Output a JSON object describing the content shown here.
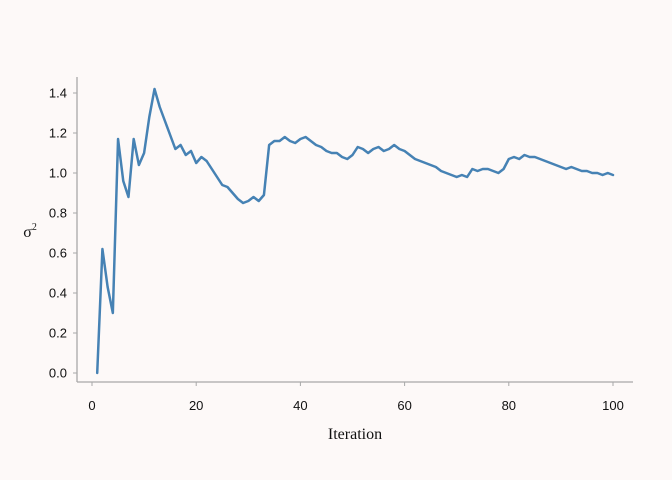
{
  "chart_data": {
    "type": "line",
    "title": "",
    "xlabel": "Iteration",
    "ylabel_base": "σ",
    "ylabel_sup": "2",
    "xlim": [
      -2,
      104
    ],
    "ylim": [
      -0.05,
      1.48
    ],
    "xticks": [
      0,
      20,
      40,
      60,
      80,
      100
    ],
    "yticks": [
      0.0,
      0.2,
      0.4,
      0.6,
      0.8,
      1.0,
      1.2,
      1.4
    ],
    "xtick_labels": [
      "0",
      "20",
      "40",
      "60",
      "80",
      "100"
    ],
    "ytick_labels": [
      "0.0",
      "0.2",
      "0.4",
      "0.6",
      "0.8",
      "1.0",
      "1.2",
      "1.4"
    ],
    "grid": false,
    "line_color": "#4682b4",
    "series": [
      {
        "x": [
          1,
          2,
          3,
          4,
          5,
          6,
          7,
          8,
          9,
          10,
          11,
          12,
          13,
          14,
          15,
          16,
          17,
          18,
          19,
          20,
          21,
          22,
          23,
          24,
          25,
          26,
          27,
          28,
          29,
          30,
          31,
          32,
          33,
          34,
          35,
          36,
          37,
          38,
          39,
          40,
          41,
          42,
          43,
          44,
          45,
          46,
          47,
          48,
          49,
          50,
          51,
          52,
          53,
          54,
          55,
          56,
          57,
          58,
          59,
          60,
          61,
          62,
          63,
          64,
          65,
          66,
          67,
          68,
          69,
          70,
          71,
          72,
          73,
          74,
          75,
          76,
          77,
          78,
          79,
          80,
          81,
          82,
          83,
          84,
          85,
          86,
          87,
          88,
          89,
          90,
          91,
          92,
          93,
          94,
          95,
          96,
          97,
          98,
          99,
          100
        ],
        "values": [
          0.0,
          0.62,
          0.43,
          0.3,
          1.17,
          0.96,
          0.88,
          1.17,
          1.04,
          1.1,
          1.28,
          1.42,
          1.33,
          1.26,
          1.19,
          1.12,
          1.14,
          1.09,
          1.11,
          1.05,
          1.08,
          1.06,
          1.02,
          0.98,
          0.94,
          0.93,
          0.9,
          0.87,
          0.85,
          0.86,
          0.88,
          0.86,
          0.89,
          1.14,
          1.16,
          1.16,
          1.18,
          1.16,
          1.15,
          1.17,
          1.18,
          1.16,
          1.14,
          1.13,
          1.11,
          1.1,
          1.1,
          1.08,
          1.07,
          1.09,
          1.13,
          1.12,
          1.1,
          1.12,
          1.13,
          1.11,
          1.12,
          1.14,
          1.12,
          1.11,
          1.09,
          1.07,
          1.06,
          1.05,
          1.04,
          1.03,
          1.01,
          1.0,
          0.99,
          0.98,
          0.99,
          0.98,
          1.02,
          1.01,
          1.02,
          1.02,
          1.01,
          1.0,
          1.02,
          1.07,
          1.08,
          1.07,
          1.09,
          1.08,
          1.08,
          1.07,
          1.06,
          1.05,
          1.04,
          1.03,
          1.02,
          1.03,
          1.02,
          1.01,
          1.01,
          1.0,
          1.0,
          0.99,
          1.0,
          0.99
        ]
      }
    ]
  }
}
